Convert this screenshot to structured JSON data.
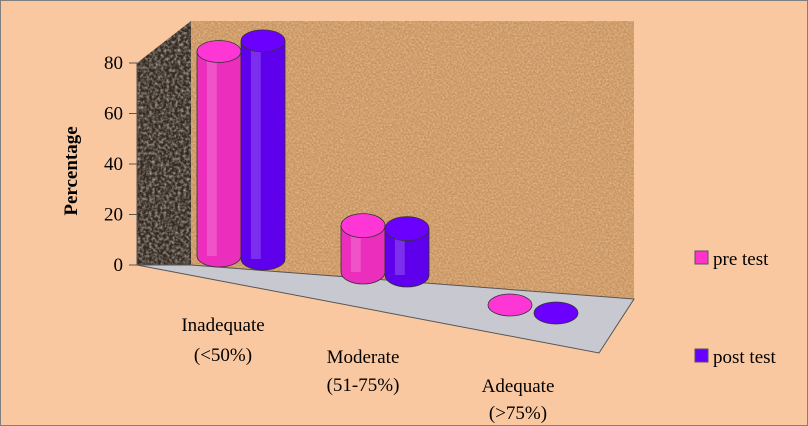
{
  "chart_data": {
    "type": "bar",
    "title": "",
    "xlabel": "",
    "ylabel": "Percentage",
    "ylim": [
      0,
      80
    ],
    "yticks": [
      "0",
      "20",
      "40",
      "60",
      "80"
    ],
    "categories": [
      {
        "line1": "Inadequate",
        "line2": "(<50%)"
      },
      {
        "line1": "Moderate",
        "line2": "(51-75%)"
      },
      {
        "line1": "Adequate",
        "line2": "(>75%)"
      }
    ],
    "series": [
      {
        "name": "pre test",
        "color": "#ff33cc",
        "values": [
          75,
          17,
          0
        ]
      },
      {
        "name": "post test",
        "color": "#6600ff",
        "values": [
          80,
          17,
          0
        ]
      }
    ],
    "legend_position": "right",
    "background_color": "#fac8a0",
    "wall_texture": "cork"
  }
}
